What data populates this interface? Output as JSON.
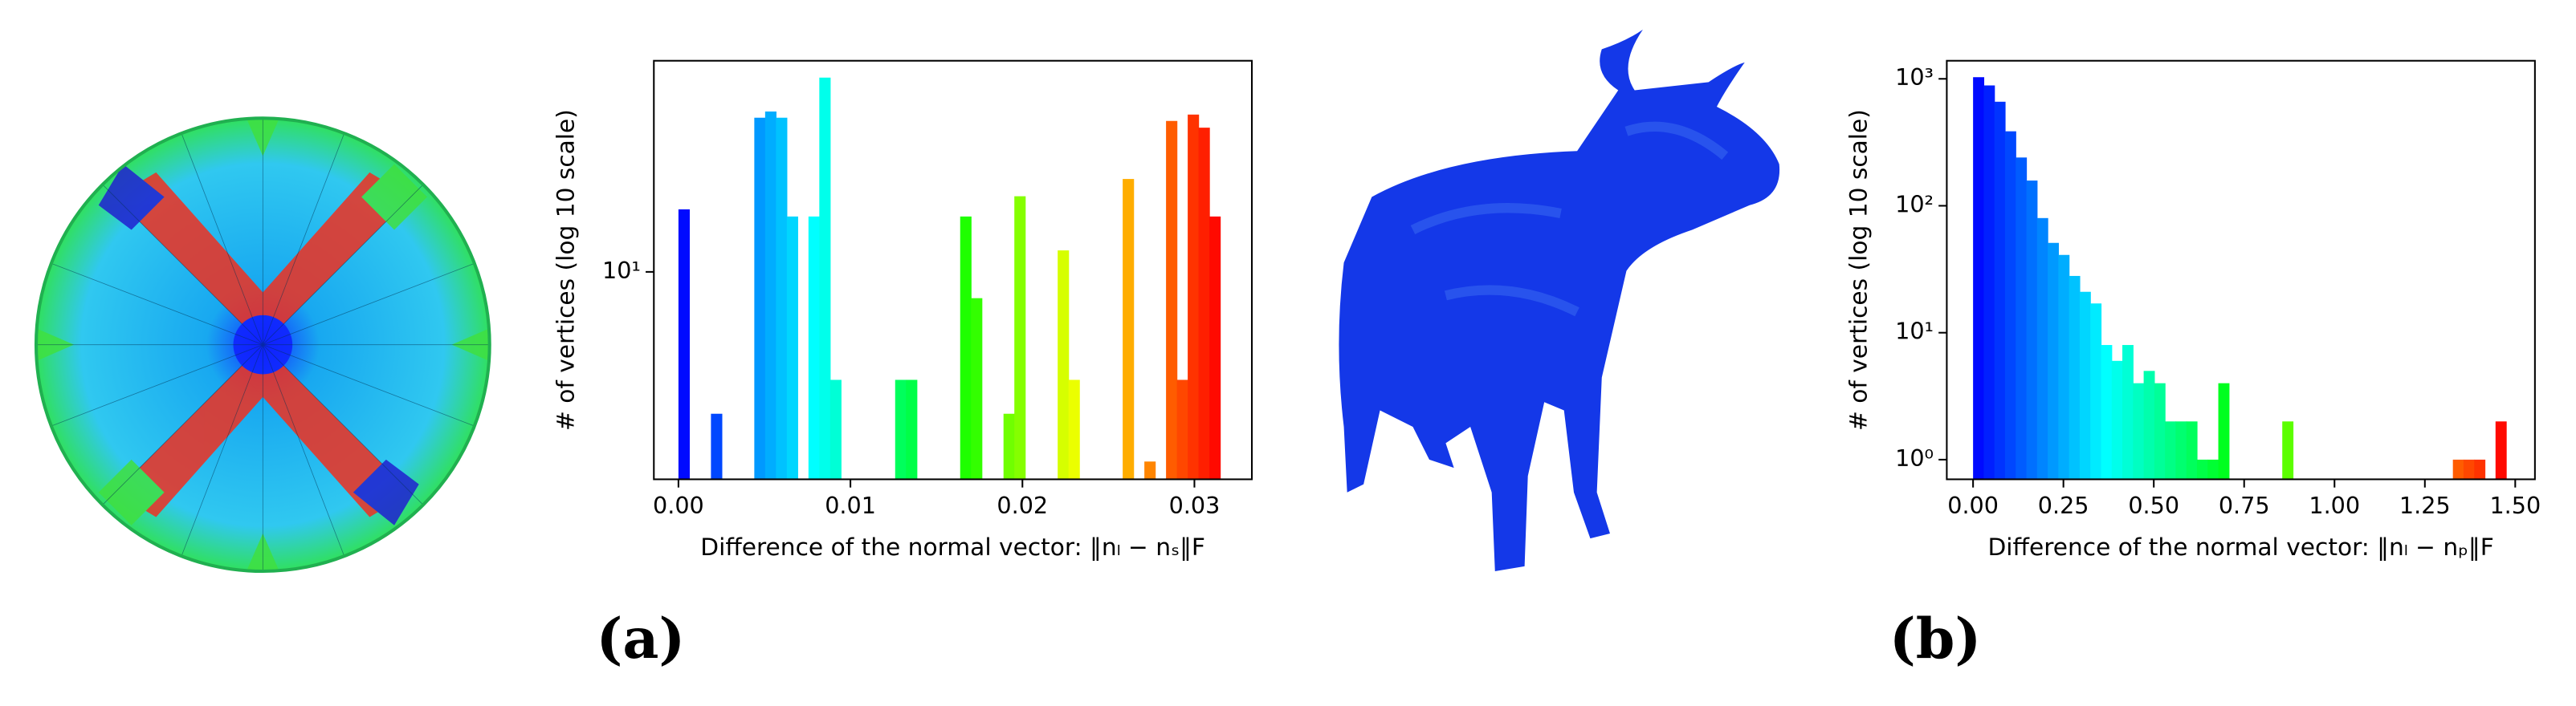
{
  "chart_data": [
    {
      "type": "histogram",
      "ylabel": "# of vertices (log 10 scale)",
      "xlabel": "Difference of the normal vector: ‖nₗ − nₛ‖F",
      "log_y": true,
      "colormap": "rainbow",
      "bins": [
        0,
        0.00063,
        0.00126,
        0.00189,
        0.00252,
        0.00315,
        0.00378,
        0.00441,
        0.00504,
        0.00567,
        0.0063,
        0.00693,
        0.00756,
        0.00819,
        0.00882,
        0.00945,
        0.01008,
        0.01071,
        0.01134,
        0.01197,
        0.0126,
        0.01323,
        0.01386,
        0.01449,
        0.01512,
        0.01575,
        0.01638,
        0.01701,
        0.01764,
        0.01827,
        0.0189,
        0.01953,
        0.02016,
        0.02079,
        0.02142,
        0.02205,
        0.02268,
        0.02331,
        0.02394,
        0.02457,
        0.0252,
        0.02583,
        0.02646,
        0.02709,
        0.02772,
        0.02835,
        0.02898,
        0.02961,
        0.03024,
        0.03087,
        0.0315
      ],
      "values": [
        17,
        0,
        0,
        3,
        0,
        0,
        0,
        37,
        39,
        37,
        16,
        0,
        16,
        52,
        4,
        0,
        0,
        0,
        0,
        0,
        4,
        4,
        0,
        0,
        0,
        0,
        16,
        8,
        0,
        0,
        3,
        19,
        0,
        0,
        0,
        12,
        4,
        0,
        0,
        0,
        0,
        22,
        0,
        2,
        0,
        36,
        4,
        38,
        34,
        16
      ],
      "xlim": [
        -0.00143,
        0.03334
      ],
      "xticks": [
        {
          "value": 0,
          "label": "0.00"
        },
        0.01,
        0.02,
        0.03
      ],
      "ylim": [
        1.72,
        60
      ],
      "yticks": [
        {
          "value": 10,
          "label": "10¹"
        }
      ]
    },
    {
      "type": "histogram",
      "ylabel": "# of vertices (log 10 scale)",
      "xlabel": "Difference of the normal vector: ‖nₗ − nₚ‖F",
      "log_y": true,
      "colormap": "rainbow",
      "bins": [
        0,
        0.0295,
        0.059,
        0.0885,
        0.118,
        0.1475,
        0.177,
        0.2065,
        0.236,
        0.2655,
        0.295,
        0.3245,
        0.354,
        0.3835,
        0.413,
        0.4425,
        0.472,
        0.5015,
        0.531,
        0.5605,
        0.59,
        0.6195,
        0.649,
        0.6785,
        0.708,
        0.7375,
        0.767,
        0.7965,
        0.826,
        0.8555,
        0.885,
        0.9145,
        0.944,
        0.9735,
        1.003,
        1.0325,
        1.062,
        1.0915,
        1.121,
        1.1505,
        1.18,
        1.2095,
        1.239,
        1.2685,
        1.298,
        1.3275,
        1.357,
        1.3865,
        1.416,
        1.4455,
        1.475
      ],
      "values": [
        1030,
        887,
        660,
        386,
        240,
        158,
        80,
        51,
        41,
        28,
        21,
        17,
        8,
        6,
        8,
        4,
        5,
        4,
        2,
        2,
        2,
        1,
        1,
        4,
        0,
        0,
        0,
        0,
        0,
        2,
        0,
        0,
        0,
        0,
        0,
        0,
        0,
        0,
        0,
        0,
        0,
        0,
        0,
        0,
        0,
        1,
        1,
        1,
        0,
        2
      ],
      "xlim": [
        -0.0727,
        1.5545
      ],
      "xticks": [
        {
          "value": 0,
          "label": "0.00"
        },
        0.25,
        {
          "value": 0.5,
          "label": "0.50"
        },
        0.75,
        {
          "value": 1,
          "label": "1.00"
        },
        1.25,
        {
          "value": 1.5,
          "label": "1.50"
        }
      ],
      "ylim": [
        0.7,
        1388
      ],
      "yticks": [
        {
          "value": 1,
          "label": "10⁰"
        },
        {
          "value": 10,
          "label": "10¹"
        },
        {
          "value": 100,
          "label": "10²"
        },
        {
          "value": 1000,
          "label": "10³"
        }
      ]
    }
  ],
  "panel_labels": [
    "(a)",
    "(b)"
  ]
}
